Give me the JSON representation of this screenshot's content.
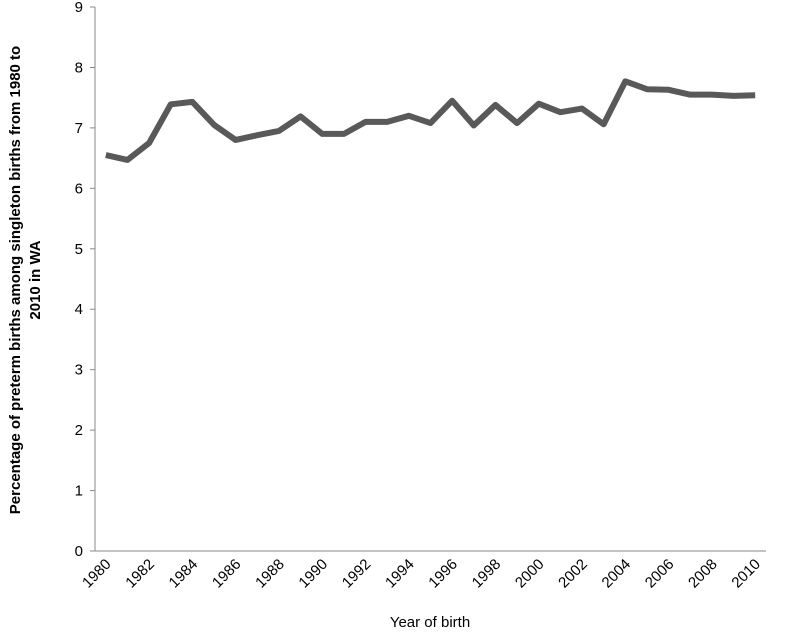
{
  "chart_data": {
    "type": "line",
    "x_label": "Year of birth",
    "y_label": [
      "Percentage of preterm births among singleton births from 1980 to",
      "2010 in WA"
    ],
    "categories": [
      "1980",
      null,
      "1982",
      null,
      "1984",
      null,
      "1986",
      null,
      "1988",
      null,
      "1990",
      null,
      "1992",
      null,
      "1994",
      null,
      "1996",
      null,
      "1998",
      null,
      "2000",
      null,
      "2002",
      null,
      "2004",
      null,
      "2006",
      null,
      "2008",
      null,
      "2010"
    ],
    "series": [
      {
        "color": "#595959",
        "values": [
          6.55,
          6.47,
          6.75,
          7.39,
          7.43,
          7.05,
          6.8,
          6.88,
          6.95,
          7.19,
          6.9,
          6.9,
          7.1,
          7.1,
          7.2,
          7.08,
          7.45,
          7.04,
          7.38,
          7.08,
          7.4,
          7.26,
          7.32,
          7.06,
          7.77,
          7.64,
          7.63,
          7.55,
          7.55,
          7.53,
          7.54
        ]
      }
    ],
    "ylim": [
      0,
      9
    ],
    "yticks": [
      0,
      1,
      2,
      3,
      4,
      5,
      6,
      7,
      8,
      9
    ],
    "grid": false
  }
}
